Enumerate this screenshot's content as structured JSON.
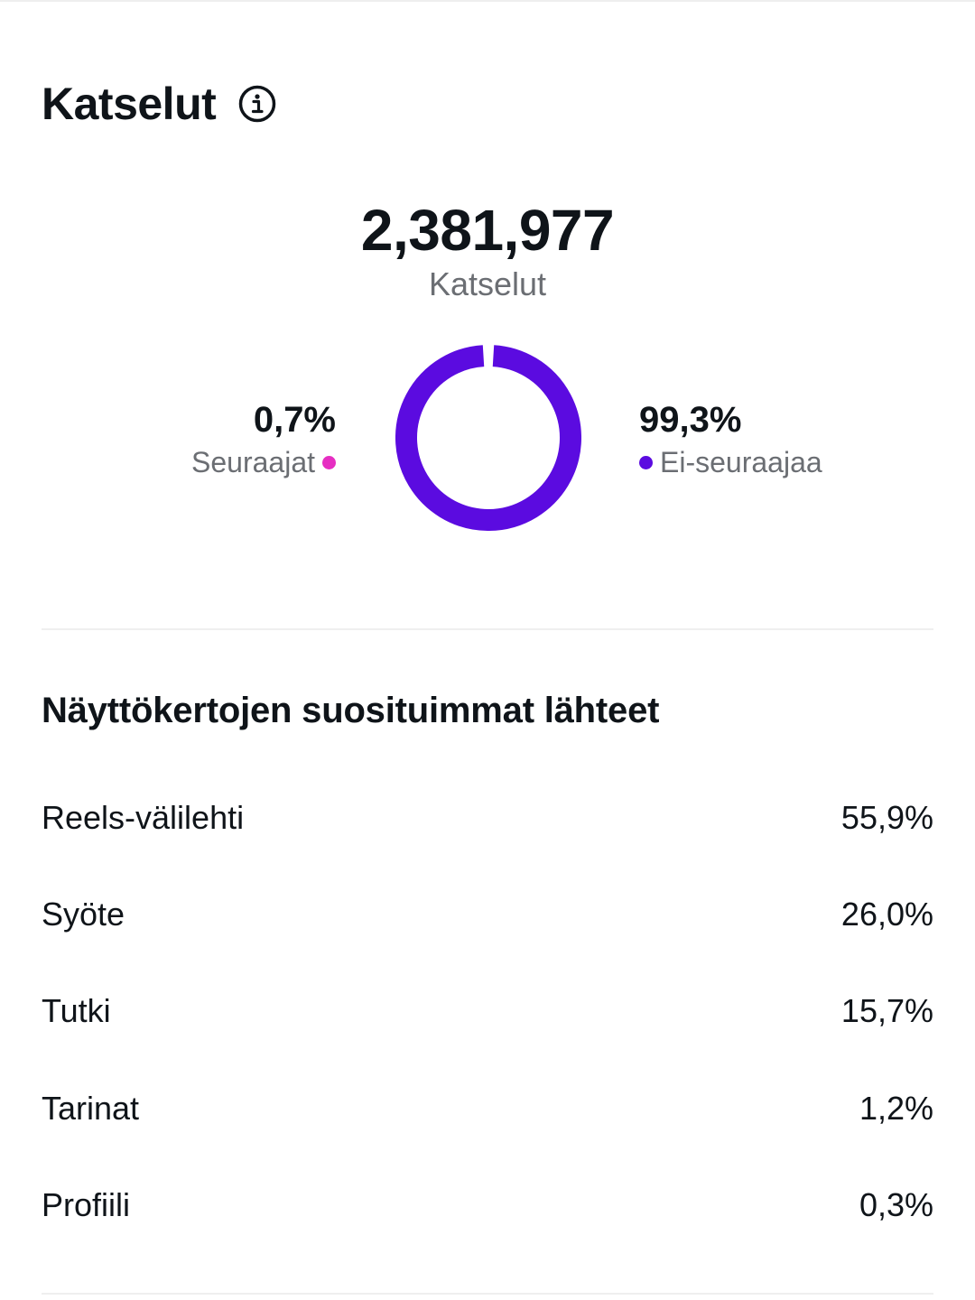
{
  "header": {
    "title": "Katselut",
    "info_icon": "info-circle-icon"
  },
  "summary": {
    "total_value": "2,381,977",
    "total_label": "Katselut"
  },
  "breakdown": {
    "followers": {
      "percent_text": "0,7%",
      "label": "Seuraajat",
      "value": 0.7,
      "color": "#e62ec2"
    },
    "non_followers": {
      "percent_text": "99,3%",
      "label": "Ei-seuraajaa",
      "value": 99.3,
      "color": "#5b0be0"
    }
  },
  "sources": {
    "title": "Näyttökertojen suosituimmat lähteet",
    "items": [
      {
        "label": "Reels-välilehti",
        "value": "55,9%"
      },
      {
        "label": "Syöte",
        "value": "26,0%"
      },
      {
        "label": "Tutki",
        "value": "15,7%"
      },
      {
        "label": "Tarinat",
        "value": "1,2%"
      },
      {
        "label": "Profiili",
        "value": "0,3%"
      }
    ]
  }
}
